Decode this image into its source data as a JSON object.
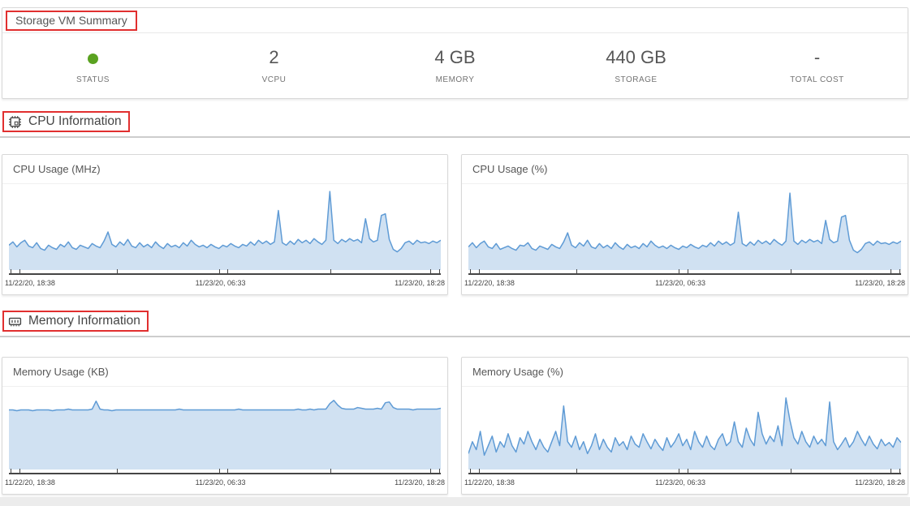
{
  "summary": {
    "title": "Storage VM Summary",
    "stats": [
      {
        "label": "STATUS",
        "value": "",
        "kind": "status-dot"
      },
      {
        "label": "VCPU",
        "value": "2"
      },
      {
        "label": "MEMORY",
        "value": "4 GB"
      },
      {
        "label": "STORAGE",
        "value": "440 GB"
      },
      {
        "label": "TOTAL COST",
        "value": "-"
      }
    ]
  },
  "sections": {
    "cpu_title": "CPU Information",
    "memory_title": "Memory Information"
  },
  "colors": {
    "status_green": "#5aa220",
    "chart_line": "#5f9bd5",
    "chart_fill": "#d0e1f2",
    "annotation_red": "#e12f2f",
    "axis_line": "#454545"
  },
  "axis_ticks_pct": [
    0.4,
    2.4,
    25,
    48.6,
    50.6,
    74.5,
    97.6,
    99.6
  ],
  "chart_data": [
    {
      "id": "cpu_usage_mhz",
      "type": "area",
      "title": "CPU Usage (MHz)",
      "x_tick_labels": [
        "11/22/20, 18:38",
        "11/23/20, 06:33",
        "11/23/20, 18:28"
      ],
      "x_range": [
        "11/22/20 18:38",
        "11/23/20 18:28"
      ],
      "y_axis_visible": false,
      "y_units": "relative_height_pct",
      "ylim": [
        0,
        100
      ],
      "grid": false,
      "legend": false,
      "values": [
        30,
        34,
        28,
        33,
        36,
        29,
        27,
        33,
        26,
        24,
        30,
        27,
        25,
        31,
        28,
        34,
        27,
        25,
        30,
        28,
        26,
        32,
        29,
        27,
        35,
        46,
        31,
        28,
        34,
        30,
        37,
        29,
        27,
        33,
        28,
        31,
        27,
        34,
        29,
        26,
        32,
        28,
        30,
        27,
        33,
        29,
        36,
        31,
        28,
        30,
        27,
        31,
        28,
        26,
        30,
        28,
        32,
        29,
        27,
        31,
        29,
        34,
        30,
        36,
        32,
        35,
        31,
        34,
        72,
        33,
        30,
        35,
        31,
        37,
        33,
        36,
        32,
        38,
        34,
        31,
        36,
        95,
        36,
        32,
        37,
        34,
        38,
        35,
        37,
        33,
        62,
        38,
        34,
        36,
        66,
        68,
        37,
        25,
        22,
        26,
        33,
        35,
        31,
        36,
        33,
        34,
        32,
        35,
        33,
        36
      ]
    },
    {
      "id": "cpu_usage_pct",
      "type": "area",
      "title": "CPU Usage (%)",
      "x_tick_labels": [
        "11/22/20, 18:38",
        "11/23/20, 06:33",
        "11/23/20, 18:28"
      ],
      "x_range": [
        "11/22/20 18:38",
        "11/23/20 18:28"
      ],
      "y_axis_visible": false,
      "y_units": "relative_height_pct",
      "ylim": [
        0,
        100
      ],
      "grid": false,
      "legend": false,
      "values": [
        28,
        33,
        27,
        32,
        35,
        28,
        26,
        32,
        25,
        27,
        29,
        26,
        24,
        30,
        29,
        33,
        26,
        24,
        29,
        27,
        25,
        31,
        28,
        26,
        34,
        45,
        30,
        27,
        33,
        29,
        36,
        28,
        26,
        32,
        27,
        30,
        26,
        33,
        28,
        25,
        31,
        27,
        29,
        26,
        32,
        28,
        35,
        30,
        27,
        29,
        26,
        30,
        27,
        25,
        29,
        27,
        31,
        28,
        26,
        30,
        28,
        33,
        29,
        35,
        31,
        34,
        30,
        33,
        70,
        32,
        29,
        34,
        30,
        36,
        32,
        35,
        31,
        37,
        33,
        30,
        35,
        93,
        35,
        31,
        36,
        33,
        37,
        34,
        36,
        32,
        60,
        37,
        33,
        35,
        64,
        66,
        36,
        24,
        21,
        25,
        32,
        34,
        30,
        35,
        32,
        33,
        31,
        34,
        32,
        35
      ]
    },
    {
      "id": "memory_usage_kb",
      "type": "area",
      "title": "Memory Usage (KB)",
      "x_tick_labels": [
        "11/22/20, 18:38",
        "11/23/20, 06:33",
        "11/23/20, 18:28"
      ],
      "x_range": [
        "11/22/20 18:38",
        "11/23/20 18:28"
      ],
      "y_axis_visible": false,
      "y_units": "relative_height_pct",
      "ylim": [
        0,
        100
      ],
      "grid": false,
      "legend": false,
      "values": [
        75,
        75,
        74,
        75,
        75,
        75,
        74,
        75,
        75,
        75,
        75,
        74,
        75,
        75,
        75,
        76,
        75,
        75,
        75,
        75,
        75,
        76,
        86,
        76,
        75,
        75,
        74,
        75,
        75,
        75,
        75,
        75,
        75,
        75,
        75,
        75,
        75,
        75,
        75,
        75,
        75,
        75,
        75,
        76,
        75,
        75,
        75,
        75,
        75,
        75,
        75,
        75,
        75,
        75,
        75,
        75,
        75,
        75,
        76,
        75,
        75,
        75,
        75,
        75,
        75,
        75,
        75,
        75,
        75,
        75,
        75,
        75,
        75,
        76,
        75,
        75,
        76,
        75,
        76,
        76,
        76,
        83,
        87,
        81,
        77,
        76,
        76,
        76,
        78,
        77,
        76,
        76,
        76,
        77,
        76,
        84,
        85,
        78,
        76,
        76,
        76,
        76,
        75,
        76,
        76,
        76,
        76,
        76,
        76,
        77
      ]
    },
    {
      "id": "memory_usage_pct",
      "type": "area",
      "title": "Memory Usage (%)",
      "x_tick_labels": [
        "11/22/20, 18:38",
        "11/23/20, 06:33",
        "11/23/20, 18:28"
      ],
      "x_range": [
        "11/22/20 18:38",
        "11/23/20 18:28"
      ],
      "y_axis_visible": false,
      "y_units": "relative_height_pct",
      "ylim": [
        0,
        100
      ],
      "grid": false,
      "legend": false,
      "values": [
        20,
        35,
        25,
        48,
        18,
        30,
        42,
        22,
        35,
        28,
        45,
        30,
        22,
        40,
        32,
        48,
        35,
        25,
        38,
        28,
        22,
        35,
        48,
        30,
        80,
        35,
        28,
        42,
        25,
        35,
        20,
        30,
        45,
        25,
        38,
        28,
        22,
        40,
        30,
        35,
        25,
        42,
        32,
        28,
        45,
        35,
        26,
        38,
        30,
        24,
        40,
        28,
        35,
        45,
        30,
        38,
        25,
        48,
        35,
        28,
        42,
        30,
        25,
        38,
        45,
        30,
        35,
        60,
        35,
        28,
        52,
        38,
        30,
        72,
        45,
        32,
        42,
        35,
        55,
        30,
        90,
        62,
        40,
        32,
        48,
        35,
        28,
        42,
        32,
        38,
        30,
        85,
        35,
        25,
        32,
        40,
        28,
        35,
        48,
        38,
        30,
        42,
        32,
        26,
        38,
        30,
        34,
        28,
        40,
        34
      ]
    }
  ]
}
